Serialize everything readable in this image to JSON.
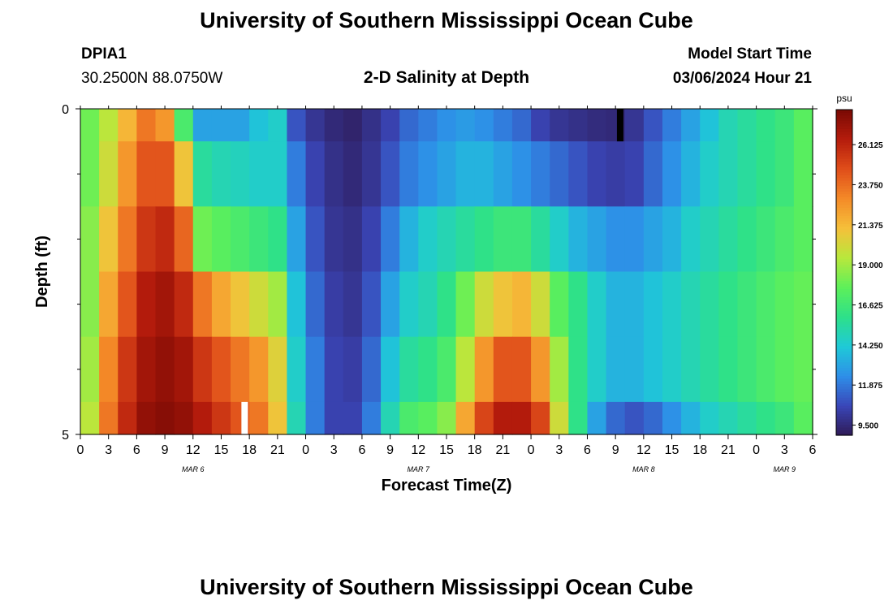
{
  "header": {
    "title": "University of Southern Mississippi Ocean Cube",
    "station": "DPIA1",
    "coordinates": "30.2500N  88.0750W",
    "subtitle": "2-D Salinity at Depth",
    "model_start_label": "Model Start Time",
    "model_start_value": "03/06/2024 Hour 21"
  },
  "footer": {
    "title": "University of Southern Mississippi Ocean Cube"
  },
  "chart_data": {
    "type": "heatmap",
    "title": "2-D Salinity at Depth",
    "xlabel": "Forecast Time(Z)",
    "ylabel": "Depth (ft)",
    "x_tick_labels": [
      "0",
      "3",
      "6",
      "9",
      "12",
      "15",
      "18",
      "21",
      "0",
      "3",
      "6",
      "9",
      "12",
      "15",
      "18",
      "21",
      "0",
      "3",
      "6",
      "9",
      "12",
      "15",
      "18",
      "21",
      "0",
      "3",
      "6"
    ],
    "x_date_labels": [
      {
        "label": "MAR 6",
        "hour_offset": 12
      },
      {
        "label": "MAR 7",
        "hour_offset": 36
      },
      {
        "label": "MAR 8",
        "hour_offset": 60
      },
      {
        "label": "MAR 9",
        "hour_offset": 75
      }
    ],
    "y_tick_labels": [
      "0",
      "5"
    ],
    "ylim": [
      0,
      5
    ],
    "x_hours": [
      0,
      2,
      4,
      6,
      8,
      10,
      12,
      14,
      16,
      18,
      20,
      22,
      24,
      26,
      28,
      30,
      32,
      34,
      36,
      38,
      40,
      42,
      44,
      46,
      48,
      50,
      52,
      54,
      56,
      58,
      60,
      62,
      64,
      66,
      68,
      70,
      72,
      74,
      76,
      78
    ],
    "depth_rows_ft": [
      0,
      0.5,
      1.5,
      2.5,
      3.5,
      4.5
    ],
    "salinity_psu": [
      [
        18.0,
        19.5,
        21.5,
        23.5,
        22.5,
        17.0,
        13.0,
        13.0,
        13.0,
        14.0,
        14.5,
        11.0,
        10.0,
        9.5,
        9.3,
        9.8,
        10.5,
        11.5,
        12.0,
        12.5,
        12.8,
        12.5,
        12.0,
        11.5,
        10.5,
        10.0,
        9.8,
        9.6,
        9.5,
        10.0,
        11.0,
        12.0,
        13.0,
        14.0,
        15.0,
        15.5,
        16.0,
        16.5,
        17.5,
        18.0
      ],
      [
        18.0,
        20.0,
        22.5,
        24.5,
        24.5,
        21.0,
        15.5,
        15.0,
        14.8,
        14.5,
        14.5,
        12.0,
        10.5,
        9.8,
        9.5,
        10.0,
        11.0,
        12.0,
        12.5,
        13.0,
        13.5,
        13.5,
        13.0,
        12.5,
        12.0,
        11.5,
        11.0,
        10.5,
        10.3,
        10.5,
        11.5,
        12.5,
        13.5,
        14.5,
        15.0,
        15.5,
        16.0,
        16.5,
        17.5,
        18.0
      ],
      [
        18.5,
        21.0,
        23.5,
        25.5,
        26.0,
        24.0,
        18.0,
        17.5,
        17.0,
        16.5,
        16.0,
        13.0,
        11.0,
        10.0,
        9.8,
        10.5,
        12.0,
        13.5,
        14.5,
        15.0,
        15.5,
        16.0,
        16.5,
        16.5,
        15.5,
        14.5,
        13.5,
        13.0,
        12.5,
        12.5,
        13.0,
        13.5,
        14.5,
        15.0,
        15.5,
        16.0,
        16.5,
        17.0,
        17.5,
        18.0
      ],
      [
        18.5,
        22.0,
        24.5,
        26.5,
        27.0,
        26.0,
        23.5,
        22.0,
        21.0,
        20.0,
        19.0,
        14.0,
        11.5,
        10.3,
        10.0,
        11.0,
        13.0,
        14.5,
        15.0,
        16.0,
        18.0,
        20.0,
        21.0,
        21.5,
        20.0,
        17.5,
        16.0,
        14.5,
        13.5,
        13.5,
        14.0,
        14.5,
        15.0,
        15.5,
        16.0,
        16.5,
        17.0,
        17.5,
        17.8,
        18.0
      ],
      [
        19.0,
        23.0,
        25.5,
        27.0,
        27.5,
        27.0,
        25.5,
        24.5,
        23.5,
        22.5,
        20.5,
        14.5,
        12.0,
        10.5,
        10.3,
        11.5,
        14.0,
        15.5,
        16.0,
        17.0,
        19.5,
        22.5,
        24.5,
        24.5,
        22.5,
        19.0,
        16.0,
        14.5,
        13.5,
        13.5,
        14.0,
        14.5,
        15.0,
        15.5,
        16.0,
        16.5,
        17.0,
        17.5,
        17.8,
        18.0
      ],
      [
        19.5,
        23.5,
        26.0,
        27.5,
        27.8,
        27.5,
        26.5,
        25.5,
        24.5,
        23.5,
        21.0,
        15.0,
        12.0,
        10.5,
        10.5,
        12.0,
        15.0,
        17.0,
        17.5,
        18.5,
        22.0,
        25.0,
        26.5,
        26.5,
        25.0,
        20.0,
        16.0,
        13.0,
        11.5,
        11.0,
        11.5,
        12.5,
        13.5,
        14.5,
        15.0,
        15.5,
        16.0,
        16.5,
        17.5,
        18.0
      ]
    ],
    "colorbar": {
      "unit": "psu",
      "min": 8.9,
      "max": 28.2,
      "tick_values": [
        9.5,
        11.875,
        14.25,
        16.625,
        19.0,
        21.375,
        23.75,
        26.125
      ],
      "tick_labels": [
        "9.500",
        "11.875",
        "14.250",
        "16.625",
        "19.000",
        "21.375",
        "23.750",
        "26.125"
      ],
      "colors": [
        "#2e1a56",
        "#3a46b8",
        "#2e8ee8",
        "#1fc9d8",
        "#2de08a",
        "#5df05a",
        "#b8e83c",
        "#f5c03a",
        "#f48a28",
        "#e04e1a",
        "#b51c0c",
        "#7a0a04"
      ]
    },
    "markers": [
      {
        "x_hour": 57.5,
        "depth_from": 0,
        "depth_to": 0.5,
        "color": "#000000"
      },
      {
        "x_hour": 17.5,
        "depth_from": 4.5,
        "depth_to": 5,
        "color": "#ffffff"
      }
    ],
    "grid": false
  }
}
